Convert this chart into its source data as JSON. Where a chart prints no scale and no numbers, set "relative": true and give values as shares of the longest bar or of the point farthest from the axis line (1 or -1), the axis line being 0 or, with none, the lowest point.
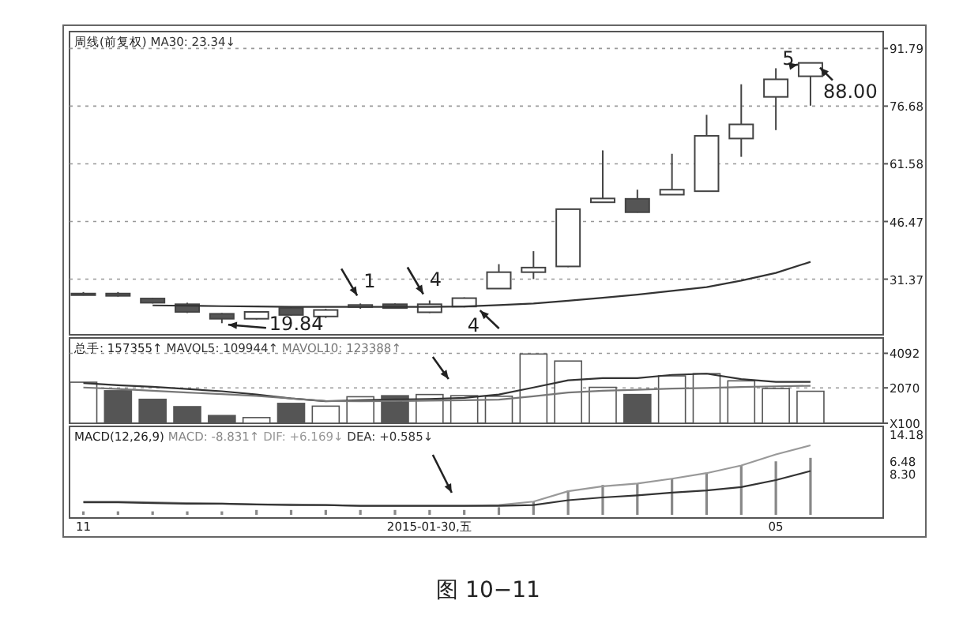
{
  "chart_data": [
    {
      "type": "candlestick",
      "title": "周线(前复权)",
      "legend": "top left",
      "grid": "y",
      "tick_labels": "y",
      "categories": [
        null,
        null,
        null,
        null,
        null,
        null,
        null,
        null,
        null,
        null,
        null,
        null,
        null,
        null,
        null,
        null,
        null,
        null,
        null,
        null,
        null,
        null
      ],
      "ohlc": [
        [
          27.5,
          28.0,
          27.1,
          27.6
        ],
        [
          27.6,
          28.0,
          26.8,
          27.0
        ],
        [
          26.3,
          26.5,
          25.0,
          25.2
        ],
        [
          24.8,
          25.2,
          22.5,
          22.8
        ],
        [
          22.3,
          22.5,
          19.84,
          21.0
        ],
        [
          21.0,
          23.0,
          20.8,
          22.8
        ],
        [
          23.8,
          24.2,
          21.8,
          22.0
        ],
        [
          21.6,
          23.6,
          21.2,
          23.3
        ],
        [
          24.1,
          25.0,
          23.6,
          24.6
        ],
        [
          24.8,
          25.0,
          23.6,
          23.8
        ],
        [
          22.7,
          25.8,
          22.5,
          24.8
        ],
        [
          24.2,
          26.6,
          24.0,
          26.4
        ],
        [
          28.9,
          35.3,
          28.9,
          33.2
        ],
        [
          33.2,
          38.7,
          31.4,
          34.4
        ],
        [
          34.7,
          49.8,
          34.5,
          49.7
        ],
        [
          51.5,
          65.1,
          51.5,
          52.5
        ],
        [
          52.4,
          54.8,
          48.8,
          48.9
        ],
        [
          53.5,
          64.2,
          53.5,
          54.8
        ],
        [
          54.4,
          74.4,
          54.4,
          68.9
        ],
        [
          68.2,
          82.4,
          63.4,
          71.9
        ],
        [
          79.1,
          86.6,
          70.4,
          83.7
        ],
        [
          84.5,
          88.0,
          76.8,
          88.0
        ]
      ],
      "series": [
        {
          "type": "line",
          "name": "MA30: 23.34↓",
          "color": "#333333",
          "values": [
            null,
            null,
            24.5,
            24.4,
            24.3,
            24.2,
            24.1,
            24.1,
            24.1,
            24.1,
            24.1,
            24.2,
            24.6,
            25.0,
            25.7,
            26.5,
            27.3,
            28.3,
            29.3,
            31.0,
            33.0,
            35.9
          ]
        }
      ],
      "ylim": [
        16.8,
        96.2
      ],
      "yticks": [
        31.37,
        46.47,
        61.58,
        76.68,
        91.79
      ],
      "annotations": [
        "19.84",
        "88.00",
        "1",
        "4",
        "4",
        "5"
      ]
    },
    {
      "type": "bar",
      "title": "总手: 157355↑",
      "legend": "top left",
      "grid": "y",
      "tick_labels": "y",
      "categories": [
        null,
        null,
        null,
        null,
        null,
        null,
        null,
        null,
        null,
        null,
        null,
        null,
        null,
        null,
        null,
        null,
        null,
        null,
        null,
        null,
        null,
        null
      ],
      "values": [
        2400,
        1900,
        1400,
        970,
        450,
        330,
        1160,
        1000,
        1550,
        1610,
        1680,
        1610,
        1580,
        4050,
        3640,
        2100,
        1680,
        2770,
        2900,
        2480,
        2030,
        1870
      ],
      "colors": [
        "#ffffff",
        "#555555",
        "#555555",
        "#555555",
        "#555555",
        "#ffffff",
        "#555555",
        "#ffffff",
        "#ffffff",
        "#555555",
        "#ffffff",
        "#ffffff",
        "#ffffff",
        "#ffffff",
        "#ffffff",
        "#ffffff",
        "#555555",
        "#ffffff",
        "#ffffff",
        "#ffffff",
        "#ffffff",
        "#ffffff"
      ],
      "series": [
        {
          "type": "line",
          "name": "MAVOL5: 109944↑",
          "color": "#333333",
          "values": [
            2350,
            2220,
            2130,
            2000,
            1870,
            1680,
            1450,
            1290,
            1350,
            1390,
            1420,
            1480,
            1680,
            2090,
            2510,
            2640,
            2640,
            2830,
            2900,
            2580,
            2420,
            2420
          ]
        },
        {
          "type": "line",
          "name": "MAVOL10: 123388↑",
          "color": "#777777",
          "values": [
            2090,
            2000,
            1900,
            1800,
            1700,
            1600,
            1450,
            1300,
            1290,
            1300,
            1320,
            1350,
            1380,
            1580,
            1800,
            1900,
            1960,
            2030,
            2060,
            2120,
            2160,
            2190
          ]
        }
      ],
      "ylim": [
        0,
        4990
      ],
      "yticks": [
        {
          "value": 0,
          "label": "X100"
        },
        2070,
        4092
      ]
    },
    {
      "type": "line",
      "title": "MACD(12,26,9)",
      "legend": "top left",
      "relative": true,
      "tick_labels": "x",
      "categories": [
        "11",
        null,
        null,
        null,
        null,
        null,
        null,
        null,
        null,
        null,
        "2015-01-30,五",
        null,
        null,
        null,
        null,
        null,
        null,
        null,
        null,
        null,
        "05",
        null
      ],
      "series": [
        {
          "type": "bar",
          "name": "MACD: -8.831↑",
          "color": "#888888",
          "values": [
            0.05,
            0.05,
            0.05,
            0.05,
            0.05,
            0.07,
            0.07,
            0.07,
            0.07,
            0.07,
            0.07,
            0.07,
            0.11,
            0.19,
            0.35,
            0.43,
            0.45,
            0.52,
            0.6,
            0.71,
            0.77,
            0.82
          ]
        },
        {
          "name": "DIF: +6.169↓",
          "color": "#999999",
          "values": [
            0.19,
            0.19,
            0.18,
            0.17,
            0.16,
            0.15,
            0.15,
            0.14,
            0.13,
            0.13,
            0.13,
            0.13,
            0.14,
            0.19,
            0.34,
            0.41,
            0.45,
            0.52,
            0.6,
            0.71,
            0.87,
            1.0
          ]
        },
        {
          "name": "DEA: +0.585↓",
          "color": "#333333",
          "values": [
            0.18,
            0.18,
            0.17,
            0.16,
            0.16,
            0.15,
            0.14,
            0.14,
            0.13,
            0.13,
            0.13,
            0.13,
            0.13,
            0.14,
            0.21,
            0.25,
            0.28,
            0.32,
            0.35,
            0.4,
            0.5,
            0.63
          ]
        }
      ],
      "annotations": [
        "14.18",
        "6.48",
        "8.30",
        "图 10−11"
      ]
    }
  ]
}
